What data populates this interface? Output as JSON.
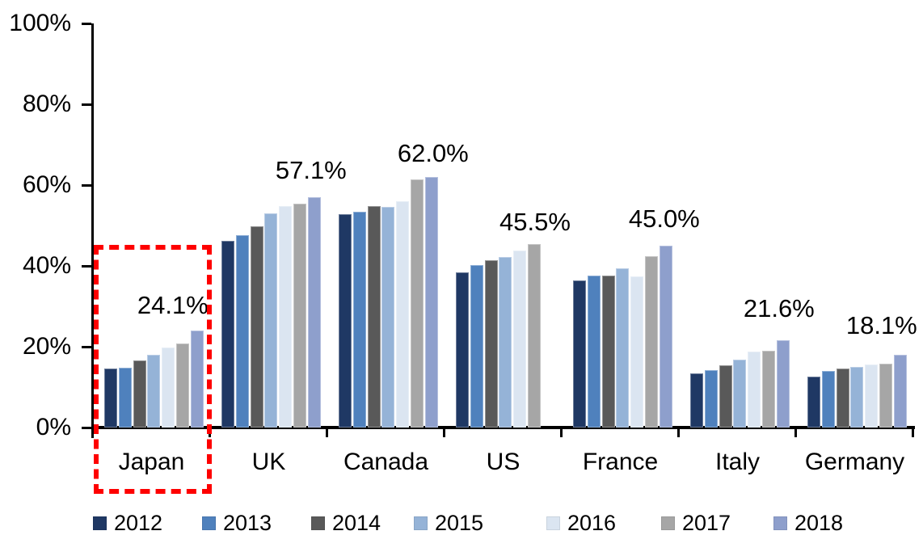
{
  "chart_data": {
    "type": "bar",
    "title": "",
    "categories": [
      "Japan",
      "UK",
      "Canada",
      "US",
      "France",
      "Italy",
      "Germany"
    ],
    "series": [
      {
        "name": "2012",
        "color": "#1F3864",
        "values": [
          14.7,
          46.3,
          52.9,
          38.4,
          36.4,
          13.5,
          12.6
        ]
      },
      {
        "name": "2013",
        "color": "#4F81BD",
        "values": [
          14.9,
          47.7,
          53.5,
          40.2,
          37.6,
          14.3,
          14.1
        ]
      },
      {
        "name": "2014",
        "color": "#595959",
        "values": [
          16.6,
          49.9,
          54.9,
          41.4,
          37.6,
          15.4,
          14.6
        ]
      },
      {
        "name": "2015",
        "color": "#95B3D7",
        "values": [
          18.0,
          53.1,
          54.7,
          42.2,
          39.4,
          16.8,
          15.1
        ]
      },
      {
        "name": "2016",
        "color": "#DBE5F1",
        "values": [
          19.9,
          54.9,
          56.1,
          43.8,
          37.4,
          18.8,
          15.6
        ]
      },
      {
        "name": "2017",
        "color": "#A6A6A6",
        "values": [
          20.8,
          55.5,
          61.4,
          45.5,
          42.4,
          19.0,
          15.9
        ]
      },
      {
        "name": "2018",
        "color": "#8E9FCC",
        "values": [
          24.1,
          57.1,
          62.0,
          null,
          45.0,
          21.6,
          18.1
        ]
      }
    ],
    "data_labels": [
      "24.1%",
      "57.1%",
      "62.0%",
      "45.5%",
      "45.0%",
      "21.6%",
      "18.1%"
    ],
    "y_ticks": [
      "0%",
      "20%",
      "40%",
      "60%",
      "80%",
      "100%"
    ],
    "ylim": [
      0,
      100
    ],
    "grid": false,
    "legend_position": "bottom",
    "legend_entries": [
      "2012",
      "2013",
      "2014",
      "2015",
      "2016",
      "2017",
      "2018"
    ],
    "annotation": {
      "type": "dashed-box",
      "target": "Japan",
      "color": "#FE0000"
    }
  }
}
